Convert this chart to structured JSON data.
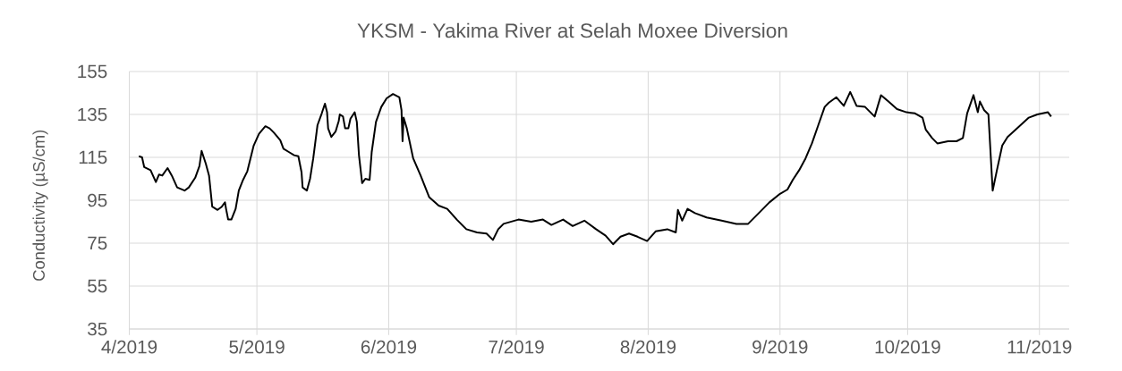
{
  "chart_data": {
    "type": "line",
    "title": "YKSM - Yakima River at Selah Moxee Diversion",
    "ylabel": "Conductivity (µS/cm)",
    "x": [
      "2019-04-03T06:00",
      "2019-04-04",
      "2019-04-04T12:00",
      "2019-04-06",
      "2019-04-07T06:00",
      "2019-04-08",
      "2019-04-08T18:00",
      "2019-04-10",
      "2019-04-11",
      "2019-04-12T06:00",
      "2019-04-14",
      "2019-04-15",
      "2019-04-16T12:00",
      "2019-04-17T12:00",
      "2019-04-18",
      "2019-04-19",
      "2019-04-19T18:00",
      "2019-04-20T12:00",
      "2019-04-21T18:00",
      "2019-04-22T18:00",
      "2019-04-23T12:00",
      "2019-04-23T18:00",
      "2019-04-24T06:00",
      "2019-04-25",
      "2019-04-26",
      "2019-04-26T18:00",
      "2019-04-27T18:00",
      "2019-04-28T18:00",
      "2019-04-30T06:00",
      "2019-05-01T12:00",
      "2019-05-03",
      "2019-05-04",
      "2019-05-05",
      "2019-05-06T12:00",
      "2019-05-07T06:00",
      "2019-05-08T12:00",
      "2019-05-09T18:00",
      "2019-05-10T18:00",
      "2019-05-11T12:00",
      "2019-05-11T18:00",
      "2019-05-12T18:00",
      "2019-05-13T12:00",
      "2019-05-14T06:00",
      "2019-05-15T06:00",
      "2019-05-16T06:00",
      "2019-05-17",
      "2019-05-17T12:00",
      "2019-05-17T18:00",
      "2019-05-18T12:00",
      "2019-05-19T12:00",
      "2019-05-20T06:00",
      "2019-05-20T12:00",
      "2019-05-21T06:00",
      "2019-05-21T18:00",
      "2019-05-22T12:00",
      "2019-05-23",
      "2019-05-24",
      "2019-05-24T12:00",
      "2019-05-25",
      "2019-05-25T18:00",
      "2019-05-26T12:00",
      "2019-05-27T12:00",
      "2019-05-28",
      "2019-05-29",
      "2019-05-30T06:00",
      "2019-05-31T12:00",
      "2019-06-02",
      "2019-06-03T12:00",
      "2019-06-04",
      "2019-06-04T06:00",
      "2019-06-04T12:00",
      "2019-06-05T06:00",
      "2019-06-06T18:00",
      "2019-06-08T12:00",
      "2019-06-10T12:00",
      "2019-06-12T18:00",
      "2019-06-14T18:00",
      "2019-06-17",
      "2019-06-19T06:00",
      "2019-06-21T18:00",
      "2019-06-24",
      "2019-06-25T12:00",
      "2019-06-26T18:00",
      "2019-06-28",
      "2019-07-01T12:00",
      "2019-07-04T12:00",
      "2019-07-07T06:00",
      "2019-07-09T06:00",
      "2019-07-12",
      "2019-07-14T06:00",
      "2019-07-17",
      "2019-07-19T18:00",
      "2019-07-22",
      "2019-07-23T18:00",
      "2019-07-25T12:00",
      "2019-07-27T12:00",
      "2019-07-29T12:00",
      "2019-07-31T18:00",
      "2019-08-02T18:00",
      "2019-08-05T12:00",
      "2019-08-07T12:00",
      "2019-08-08",
      "2019-08-09",
      "2019-08-10T06:00",
      "2019-08-12",
      "2019-08-14T18:00",
      "2019-08-18T06:00",
      "2019-08-21T18:00",
      "2019-08-24T12:00",
      "2019-08-26T18:00",
      "2019-08-29T12:00",
      "2019-09-01",
      "2019-09-02T18:00",
      "2019-09-04",
      "2019-09-05T12:00",
      "2019-09-07",
      "2019-09-08T12:00",
      "2019-09-10",
      "2019-09-11T12:00",
      "2019-09-12T12:00",
      "2019-09-14T06:00",
      "2019-09-16",
      "2019-09-17T12:00",
      "2019-09-19",
      "2019-09-21",
      "2019-09-23T06:00",
      "2019-09-24T18:00",
      "2019-09-26T12:00",
      "2019-09-28T12:00",
      "2019-09-30T18:00",
      "2019-10-02T18:00",
      "2019-10-04T12:00",
      "2019-10-05T06:00",
      "2019-10-06T18:00",
      "2019-10-08",
      "2019-10-10T12:00",
      "2019-10-12T12:00",
      "2019-10-14",
      "2019-10-15",
      "2019-10-16T12:00",
      "2019-10-17T12:00",
      "2019-10-18",
      "2019-10-19",
      "2019-10-20",
      "2019-10-21",
      "2019-10-22",
      "2019-10-23T06:00",
      "2019-10-24T12:00",
      "2019-10-26T18:00",
      "2019-10-29T12:00",
      "2019-10-31T12:00",
      "2019-11-03",
      "2019-11-03T18:00"
    ],
    "values": [
      115.5,
      115,
      110.5,
      109,
      103.5,
      107,
      106.5,
      110,
      106.5,
      101,
      99.5,
      101,
      105.5,
      111,
      118,
      112,
      106.5,
      92,
      90.5,
      92,
      94,
      91,
      86,
      86,
      91,
      99.5,
      104.5,
      108.5,
      120.5,
      126,
      129.5,
      128.5,
      126.5,
      123,
      119,
      117.5,
      116,
      115.5,
      108,
      101,
      99.5,
      105,
      114.5,
      130,
      135.5,
      140,
      136,
      128.5,
      124.5,
      127,
      132,
      135,
      134,
      128.5,
      128.5,
      133,
      136,
      131.5,
      116,
      103,
      105,
      104.5,
      117.5,
      131.5,
      138.5,
      142.5,
      144.5,
      143,
      137,
      122.5,
      133.5,
      128.5,
      114.5,
      106.5,
      96.5,
      92.5,
      91,
      86,
      81.5,
      80,
      79.5,
      76.5,
      81.5,
      84,
      86,
      85,
      86,
      83.5,
      86,
      83,
      85.5,
      81.5,
      78.5,
      74.5,
      78,
      79.5,
      78,
      76,
      80.5,
      81.5,
      80,
      90.5,
      85.5,
      91,
      89,
      87,
      85.5,
      84,
      84,
      88.5,
      94,
      98,
      100,
      104.5,
      109,
      114.5,
      121.5,
      130,
      138.5,
      140.5,
      143,
      139,
      145.5,
      139,
      138.5,
      134,
      144,
      141,
      137.5,
      136,
      135.5,
      133.5,
      128,
      124,
      121.5,
      122.5,
      122.5,
      124,
      135.5,
      144,
      136,
      141,
      137,
      135,
      99.5,
      109,
      120.5,
      124.5,
      128.5,
      133.5,
      135,
      136,
      134
    ],
    "color": "#000000",
    "marker": "none",
    "line_style": "solid",
    "grid": true,
    "xlim": [
      "2019-04-01",
      "2019-11-08"
    ],
    "ylim": [
      35,
      155
    ],
    "xticks": [
      {
        "value": "2019-04-01",
        "label": "4/2019"
      },
      {
        "value": "2019-05-01",
        "label": "5/2019"
      },
      {
        "value": "2019-06-01",
        "label": "6/2019"
      },
      {
        "value": "2019-07-01",
        "label": "7/2019"
      },
      {
        "value": "2019-08-01",
        "label": "8/2019"
      },
      {
        "value": "2019-09-01",
        "label": "9/2019"
      },
      {
        "value": "2019-10-01",
        "label": "10/2019"
      },
      {
        "value": "2019-11-01",
        "label": "11/2019"
      }
    ],
    "yticks": [
      35,
      55,
      75,
      95,
      115,
      135,
      155
    ]
  }
}
